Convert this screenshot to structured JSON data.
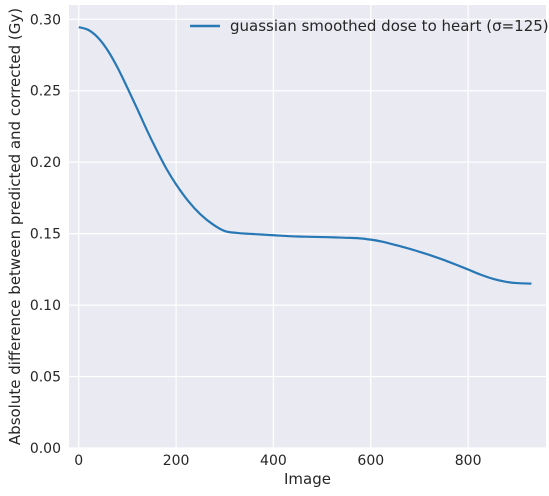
{
  "chart_data": {
    "type": "line",
    "xlabel": "Image",
    "ylabel": "Absolute difference between predicted and corrected (Gy)",
    "xlim": [
      -20,
      960
    ],
    "ylim": [
      0.0,
      0.31
    ],
    "xticks": [
      0,
      200,
      400,
      600,
      800
    ],
    "yticks": [
      0.0,
      0.05,
      0.1,
      0.15,
      0.2,
      0.25,
      0.3
    ],
    "xtick_labels": [
      "0",
      "200",
      "400",
      "600",
      "800"
    ],
    "ytick_labels": [
      "0.00",
      "0.05",
      "0.10",
      "0.15",
      "0.20",
      "0.25",
      "0.30"
    ],
    "grid": true,
    "legend_position": "top-right",
    "background": "#eaeaf2",
    "series": [
      {
        "name": "guassian smoothed dose to heart (σ=125)",
        "color": "#2878b5",
        "x": [
          0,
          20,
          40,
          60,
          80,
          100,
          120,
          140,
          160,
          180,
          200,
          225,
          250,
          275,
          300,
          325,
          350,
          375,
          400,
          425,
          450,
          475,
          500,
          525,
          550,
          575,
          600,
          625,
          650,
          675,
          700,
          725,
          750,
          775,
          800,
          825,
          850,
          875,
          900,
          930
        ],
        "y": [
          0.2945,
          0.2925,
          0.287,
          0.278,
          0.266,
          0.252,
          0.2375,
          0.2225,
          0.2085,
          0.1955,
          0.1845,
          0.1728,
          0.1635,
          0.1566,
          0.1518,
          0.1505,
          0.1499,
          0.1494,
          0.1489,
          0.1484,
          0.148,
          0.1478,
          0.1476,
          0.1474,
          0.1471,
          0.1468,
          0.1458,
          0.1443,
          0.1421,
          0.1398,
          0.1373,
          0.1346,
          0.1316,
          0.1283,
          0.1249,
          0.1214,
          0.1185,
          0.1165,
          0.1154,
          0.115
        ]
      }
    ]
  }
}
